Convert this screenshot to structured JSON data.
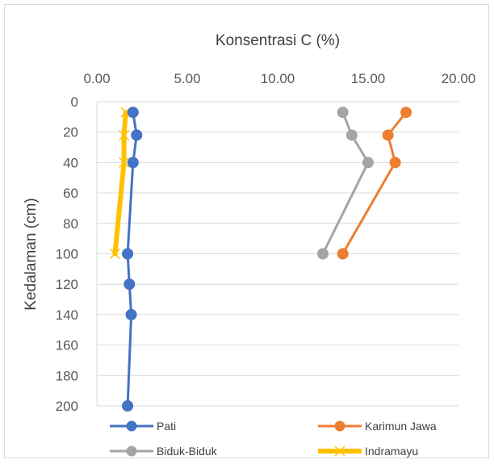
{
  "chart_data": {
    "type": "line",
    "title": "",
    "xlabel": "Konsentrasi C (%)",
    "ylabel": "Kedalaman (cm)",
    "xlim": [
      0,
      20
    ],
    "ylim": [
      0,
      200
    ],
    "x_ticks": [
      "0.00",
      "5.00",
      "10.00",
      "15.00",
      "20.00"
    ],
    "y_ticks": [
      "0",
      "20",
      "40",
      "60",
      "80",
      "100",
      "120",
      "140",
      "160",
      "180",
      "200"
    ],
    "x_axis_position": "top",
    "y_axis_reversed": true,
    "grid": "horizontal",
    "legend_position": "bottom",
    "series": [
      {
        "name": "Pati",
        "color": "#4472c4",
        "marker": "circle",
        "x": [
          2.0,
          2.2,
          2.0,
          1.7,
          1.8,
          1.9,
          1.7
        ],
        "y": [
          7,
          22,
          40,
          100,
          120,
          140,
          200
        ]
      },
      {
        "name": "Karimun Jawa",
        "color": "#ed7d31",
        "marker": "circle",
        "x": [
          17.1,
          16.1,
          16.5,
          13.6
        ],
        "y": [
          7,
          22,
          40,
          100
        ]
      },
      {
        "name": "Biduk-Biduk",
        "color": "#a5a5a5",
        "marker": "circle",
        "x": [
          13.6,
          14.1,
          15.0,
          12.5
        ],
        "y": [
          7,
          22,
          40,
          100
        ]
      },
      {
        "name": "Indramayu",
        "color": "#ffc000",
        "marker": "x",
        "x": [
          1.6,
          1.5,
          1.5,
          1.0
        ],
        "y": [
          7,
          22,
          40,
          100
        ]
      }
    ]
  }
}
